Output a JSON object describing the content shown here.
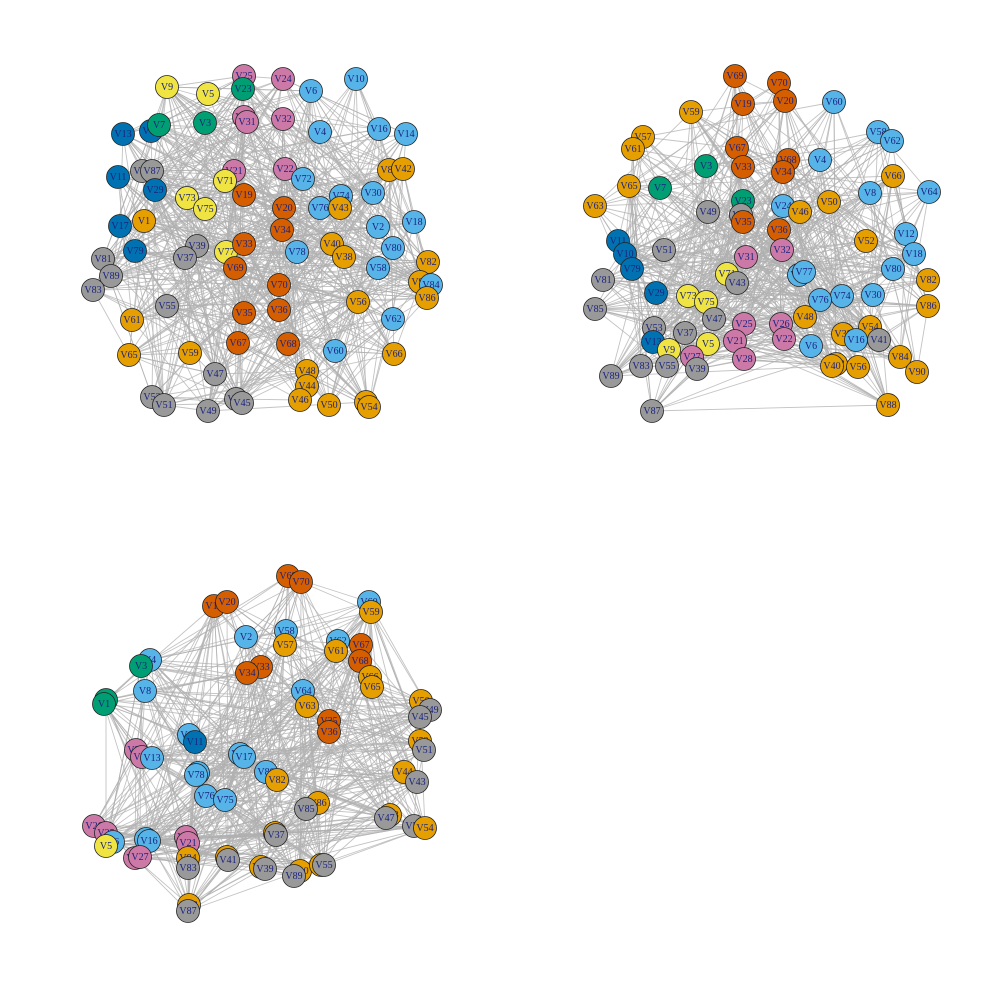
{
  "colors": {
    "yellow": "#f0e442",
    "green": "#009e73",
    "pink": "#cc79a7",
    "lightblue": "#56b4e9",
    "darkblue": "#0072b2",
    "orange": "#e69f00",
    "vermillion": "#d55e00",
    "gray": "#999999",
    "edge": "#b0b0b0",
    "label": "#1a237e"
  },
  "panels": [
    {
      "name": "panel-top-left",
      "nodes": [
        {
          "label": "V9",
          "c": "yellow"
        },
        {
          "label": "V5",
          "c": "yellow"
        },
        {
          "label": "V25",
          "c": "pink"
        },
        {
          "label": "V23",
          "c": "green"
        },
        {
          "label": "V24",
          "c": "pink"
        },
        {
          "label": "V6",
          "c": "lightblue"
        },
        {
          "label": "V10",
          "c": "lightblue"
        },
        {
          "label": "V3",
          "c": "green"
        },
        {
          "label": "V27",
          "c": "pink"
        },
        {
          "label": "V31",
          "c": "pink"
        },
        {
          "label": "V32",
          "c": "pink"
        },
        {
          "label": "V4",
          "c": "lightblue"
        },
        {
          "label": "V13",
          "c": "darkblue"
        },
        {
          "label": "V15",
          "c": "darkblue"
        },
        {
          "label": "V7",
          "c": "green"
        },
        {
          "label": "V16",
          "c": "lightblue"
        },
        {
          "label": "V14",
          "c": "lightblue"
        },
        {
          "label": "V11",
          "c": "darkblue"
        },
        {
          "label": "V63",
          "c": "gray"
        },
        {
          "label": "V87",
          "c": "gray"
        },
        {
          "label": "V21",
          "c": "pink"
        },
        {
          "label": "V22",
          "c": "pink"
        },
        {
          "label": "V72",
          "c": "lightblue"
        },
        {
          "label": "V85",
          "c": "orange"
        },
        {
          "label": "V42",
          "c": "orange"
        },
        {
          "label": "V29",
          "c": "darkblue"
        },
        {
          "label": "V71",
          "c": "yellow"
        },
        {
          "label": "V73",
          "c": "yellow"
        },
        {
          "label": "V75",
          "c": "yellow"
        },
        {
          "label": "V19",
          "c": "vermillion"
        },
        {
          "label": "V74",
          "c": "lightblue"
        },
        {
          "label": "V30",
          "c": "lightblue"
        },
        {
          "label": "V1",
          "c": "orange"
        },
        {
          "label": "V17",
          "c": "darkblue"
        },
        {
          "label": "V20",
          "c": "vermillion"
        },
        {
          "label": "V76",
          "c": "lightblue"
        },
        {
          "label": "V43",
          "c": "orange"
        },
        {
          "label": "V18",
          "c": "lightblue"
        },
        {
          "label": "V2",
          "c": "lightblue"
        },
        {
          "label": "V39",
          "c": "gray"
        },
        {
          "label": "V77",
          "c": "yellow"
        },
        {
          "label": "V33",
          "c": "vermillion"
        },
        {
          "label": "V34",
          "c": "vermillion"
        },
        {
          "label": "V78",
          "c": "lightblue"
        },
        {
          "label": "V40",
          "c": "orange"
        },
        {
          "label": "V80",
          "c": "lightblue"
        },
        {
          "label": "V79",
          "c": "darkblue"
        },
        {
          "label": "V37",
          "c": "gray"
        },
        {
          "label": "V38",
          "c": "orange"
        },
        {
          "label": "V81",
          "c": "gray"
        },
        {
          "label": "V82",
          "c": "orange"
        },
        {
          "label": "V89",
          "c": "gray"
        },
        {
          "label": "V69",
          "c": "vermillion"
        },
        {
          "label": "V58",
          "c": "lightblue"
        },
        {
          "label": "V90",
          "c": "orange"
        },
        {
          "label": "V84",
          "c": "lightblue"
        },
        {
          "label": "V83",
          "c": "gray"
        },
        {
          "label": "V86",
          "c": "orange"
        },
        {
          "label": "V55",
          "c": "gray"
        },
        {
          "label": "V70",
          "c": "vermillion"
        },
        {
          "label": "V56",
          "c": "orange"
        },
        {
          "label": "V35",
          "c": "vermillion"
        },
        {
          "label": "V36",
          "c": "vermillion"
        },
        {
          "label": "V61",
          "c": "orange"
        },
        {
          "label": "V62",
          "c": "lightblue"
        },
        {
          "label": "V67",
          "c": "vermillion"
        },
        {
          "label": "V68",
          "c": "vermillion"
        },
        {
          "label": "V65",
          "c": "orange"
        },
        {
          "label": "V59",
          "c": "orange"
        },
        {
          "label": "V60",
          "c": "lightblue"
        },
        {
          "label": "V66",
          "c": "orange"
        },
        {
          "label": "V47",
          "c": "gray"
        },
        {
          "label": "V48",
          "c": "orange"
        },
        {
          "label": "V44",
          "c": "orange"
        },
        {
          "label": "V53",
          "c": "gray"
        },
        {
          "label": "V51",
          "c": "gray"
        },
        {
          "label": "V41",
          "c": "gray"
        },
        {
          "label": "V45",
          "c": "gray"
        },
        {
          "label": "V46",
          "c": "orange"
        },
        {
          "label": "V50",
          "c": "orange"
        },
        {
          "label": "V52",
          "c": "orange"
        },
        {
          "label": "V54",
          "c": "orange"
        },
        {
          "label": "V49",
          "c": "gray"
        }
      ]
    },
    {
      "name": "panel-top-right",
      "nodes": [
        {
          "label": "V69",
          "c": "vermillion"
        },
        {
          "label": "V70",
          "c": "vermillion"
        },
        {
          "label": "V19",
          "c": "vermillion"
        },
        {
          "label": "V20",
          "c": "vermillion"
        },
        {
          "label": "V60",
          "c": "lightblue"
        },
        {
          "label": "V59",
          "c": "orange"
        },
        {
          "label": "V57",
          "c": "orange"
        },
        {
          "label": "V61",
          "c": "orange"
        },
        {
          "label": "V58",
          "c": "lightblue"
        },
        {
          "label": "V62",
          "c": "lightblue"
        },
        {
          "label": "V67",
          "c": "vermillion"
        },
        {
          "label": "V33",
          "c": "vermillion"
        },
        {
          "label": "V68",
          "c": "vermillion"
        },
        {
          "label": "V34",
          "c": "vermillion"
        },
        {
          "label": "V4",
          "c": "lightblue"
        },
        {
          "label": "V3",
          "c": "green"
        },
        {
          "label": "V66",
          "c": "orange"
        },
        {
          "label": "V65",
          "c": "orange"
        },
        {
          "label": "V7",
          "c": "green"
        },
        {
          "label": "V8",
          "c": "lightblue"
        },
        {
          "label": "V64",
          "c": "lightblue"
        },
        {
          "label": "V63",
          "c": "orange"
        },
        {
          "label": "V23",
          "c": "green"
        },
        {
          "label": "V24",
          "c": "lightblue"
        },
        {
          "label": "V50",
          "c": "orange"
        },
        {
          "label": "V49",
          "c": "gray"
        },
        {
          "label": "V45",
          "c": "gray"
        },
        {
          "label": "V46",
          "c": "orange"
        },
        {
          "label": "V35",
          "c": "vermillion"
        },
        {
          "label": "V36",
          "c": "vermillion"
        },
        {
          "label": "V52",
          "c": "orange"
        },
        {
          "label": "V12",
          "c": "lightblue"
        },
        {
          "label": "V11",
          "c": "darkblue"
        },
        {
          "label": "V51",
          "c": "gray"
        },
        {
          "label": "V32",
          "c": "pink"
        },
        {
          "label": "V18",
          "c": "lightblue"
        },
        {
          "label": "V10",
          "c": "darkblue"
        },
        {
          "label": "V31",
          "c": "pink"
        },
        {
          "label": "V80",
          "c": "lightblue"
        },
        {
          "label": "V79",
          "c": "darkblue"
        },
        {
          "label": "V81",
          "c": "gray"
        },
        {
          "label": "V71",
          "c": "yellow"
        },
        {
          "label": "V43",
          "c": "gray"
        },
        {
          "label": "V78",
          "c": "lightblue"
        },
        {
          "label": "V77",
          "c": "lightblue"
        },
        {
          "label": "V82",
          "c": "orange"
        },
        {
          "label": "V29",
          "c": "darkblue"
        },
        {
          "label": "V73",
          "c": "yellow"
        },
        {
          "label": "V75",
          "c": "yellow"
        },
        {
          "label": "V74",
          "c": "lightblue"
        },
        {
          "label": "V76",
          "c": "lightblue"
        },
        {
          "label": "V30",
          "c": "lightblue"
        },
        {
          "label": "V85",
          "c": "gray"
        },
        {
          "label": "V47",
          "c": "gray"
        },
        {
          "label": "V48",
          "c": "orange"
        },
        {
          "label": "V86",
          "c": "orange"
        },
        {
          "label": "V53",
          "c": "gray"
        },
        {
          "label": "V37",
          "c": "gray"
        },
        {
          "label": "V25",
          "c": "pink"
        },
        {
          "label": "V26",
          "c": "pink"
        },
        {
          "label": "V38",
          "c": "orange"
        },
        {
          "label": "V54",
          "c": "orange"
        },
        {
          "label": "V13",
          "c": "darkblue"
        },
        {
          "label": "V9",
          "c": "yellow"
        },
        {
          "label": "V5",
          "c": "yellow"
        },
        {
          "label": "V21",
          "c": "pink"
        },
        {
          "label": "V22",
          "c": "pink"
        },
        {
          "label": "V6",
          "c": "lightblue"
        },
        {
          "label": "V16",
          "c": "lightblue"
        },
        {
          "label": "V41",
          "c": "gray"
        },
        {
          "label": "V27",
          "c": "pink"
        },
        {
          "label": "V28",
          "c": "pink"
        },
        {
          "label": "V42",
          "c": "orange"
        },
        {
          "label": "V84",
          "c": "orange"
        },
        {
          "label": "V83",
          "c": "gray"
        },
        {
          "label": "V55",
          "c": "gray"
        },
        {
          "label": "V39",
          "c": "gray"
        },
        {
          "label": "V40",
          "c": "orange"
        },
        {
          "label": "V56",
          "c": "orange"
        },
        {
          "label": "V90",
          "c": "orange"
        },
        {
          "label": "V89",
          "c": "gray"
        },
        {
          "label": "V87",
          "c": "gray"
        },
        {
          "label": "V88",
          "c": "orange"
        }
      ]
    },
    {
      "name": "panel-bottom-left",
      "nodes": [
        {
          "label": "V69",
          "c": "vermillion"
        },
        {
          "label": "V70",
          "c": "vermillion"
        },
        {
          "label": "V19",
          "c": "vermillion"
        },
        {
          "label": "V20",
          "c": "vermillion"
        },
        {
          "label": "V60",
          "c": "lightblue"
        },
        {
          "label": "V59",
          "c": "orange"
        },
        {
          "label": "V2",
          "c": "lightblue"
        },
        {
          "label": "V58",
          "c": "lightblue"
        },
        {
          "label": "V57",
          "c": "orange"
        },
        {
          "label": "V62",
          "c": "lightblue"
        },
        {
          "label": "V61",
          "c": "orange"
        },
        {
          "label": "V67",
          "c": "vermillion"
        },
        {
          "label": "V4",
          "c": "lightblue"
        },
        {
          "label": "V3",
          "c": "green"
        },
        {
          "label": "V68",
          "c": "vermillion"
        },
        {
          "label": "V33",
          "c": "vermillion"
        },
        {
          "label": "V34",
          "c": "vermillion"
        },
        {
          "label": "V66",
          "c": "orange"
        },
        {
          "label": "V65",
          "c": "orange"
        },
        {
          "label": "V8",
          "c": "lightblue"
        },
        {
          "label": "V7",
          "c": "green"
        },
        {
          "label": "V64",
          "c": "lightblue"
        },
        {
          "label": "V63",
          "c": "orange"
        },
        {
          "label": "V50",
          "c": "orange"
        },
        {
          "label": "V49",
          "c": "gray"
        },
        {
          "label": "V45",
          "c": "gray"
        },
        {
          "label": "V1",
          "c": "green"
        },
        {
          "label": "V35",
          "c": "vermillion"
        },
        {
          "label": "V36",
          "c": "vermillion"
        },
        {
          "label": "V12",
          "c": "lightblue"
        },
        {
          "label": "V11",
          "c": "darkblue"
        },
        {
          "label": "V52",
          "c": "orange"
        },
        {
          "label": "V51",
          "c": "gray"
        },
        {
          "label": "V32",
          "c": "pink"
        },
        {
          "label": "V31",
          "c": "pink"
        },
        {
          "label": "V13",
          "c": "lightblue"
        },
        {
          "label": "V18",
          "c": "lightblue"
        },
        {
          "label": "V17",
          "c": "lightblue"
        },
        {
          "label": "V80",
          "c": "lightblue"
        },
        {
          "label": "V82",
          "c": "orange"
        },
        {
          "label": "V44",
          "c": "orange"
        },
        {
          "label": "V43",
          "c": "gray"
        },
        {
          "label": "V74",
          "c": "lightblue"
        },
        {
          "label": "V78",
          "c": "lightblue"
        },
        {
          "label": "V76",
          "c": "lightblue"
        },
        {
          "label": "V75",
          "c": "lightblue"
        },
        {
          "label": "V86",
          "c": "orange"
        },
        {
          "label": "V85",
          "c": "gray"
        },
        {
          "label": "V48",
          "c": "orange"
        },
        {
          "label": "V47",
          "c": "gray"
        },
        {
          "label": "V26",
          "c": "pink"
        },
        {
          "label": "V25",
          "c": "pink"
        },
        {
          "label": "V6",
          "c": "lightblue"
        },
        {
          "label": "V5",
          "c": "yellow"
        },
        {
          "label": "V15",
          "c": "lightblue"
        },
        {
          "label": "V16",
          "c": "lightblue"
        },
        {
          "label": "V22",
          "c": "pink"
        },
        {
          "label": "V21",
          "c": "pink"
        },
        {
          "label": "V38",
          "c": "orange"
        },
        {
          "label": "V37",
          "c": "gray"
        },
        {
          "label": "V53",
          "c": "gray"
        },
        {
          "label": "V54",
          "c": "orange"
        },
        {
          "label": "V28",
          "c": "pink"
        },
        {
          "label": "V27",
          "c": "pink"
        },
        {
          "label": "V84",
          "c": "orange"
        },
        {
          "label": "V83",
          "c": "gray"
        },
        {
          "label": "V42",
          "c": "orange"
        },
        {
          "label": "V41",
          "c": "gray"
        },
        {
          "label": "V40",
          "c": "orange"
        },
        {
          "label": "V39",
          "c": "gray"
        },
        {
          "label": "V90",
          "c": "orange"
        },
        {
          "label": "V89",
          "c": "gray"
        },
        {
          "label": "V56",
          "c": "orange"
        },
        {
          "label": "V55",
          "c": "gray"
        },
        {
          "label": "V88",
          "c": "orange"
        },
        {
          "label": "V87",
          "c": "gray"
        }
      ]
    }
  ]
}
